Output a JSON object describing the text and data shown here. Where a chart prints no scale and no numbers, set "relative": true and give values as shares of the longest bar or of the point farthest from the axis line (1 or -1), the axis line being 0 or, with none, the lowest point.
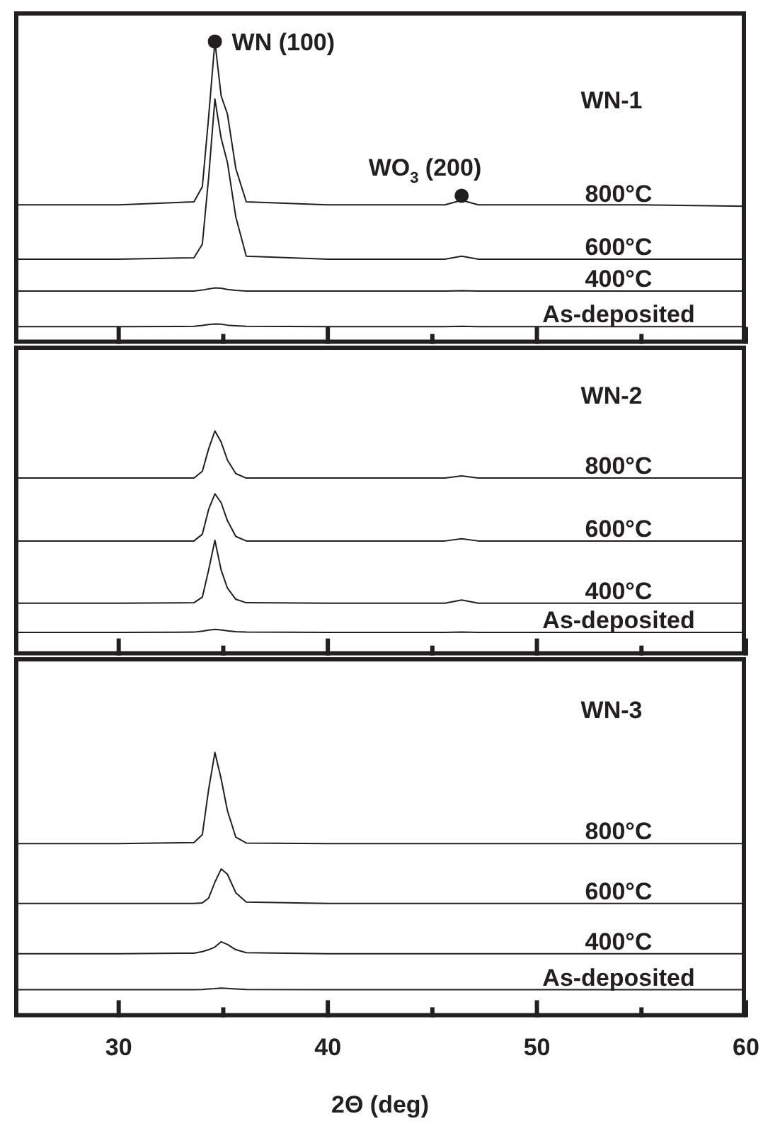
{
  "chart_data": [
    {
      "type": "line",
      "title": "WN-1",
      "relative": true,
      "xlim": [
        25,
        60
      ],
      "xticks": [
        30,
        {
          "value": 35,
          "label": null
        },
        40,
        {
          "value": 45,
          "label": null
        },
        50,
        {
          "value": 55,
          "label": null
        },
        60
      ],
      "tick_labels": false,
      "x": [
        25,
        30,
        33.6,
        34.0,
        34.3,
        34.6,
        34.9,
        35.2,
        35.6,
        36.1,
        40,
        45.6,
        46.4,
        47.2,
        55,
        60
      ],
      "series": [
        {
          "name": "800°C",
          "color": "#231f20",
          "values": [
            0.46,
            0.46,
            0.47,
            0.52,
            0.75,
            1.0,
            0.82,
            0.76,
            0.58,
            0.47,
            0.46,
            0.46,
            0.475,
            0.46,
            0.46,
            0.455
          ]
        },
        {
          "name": "600°C",
          "color": "#231f20",
          "values": [
            0.28,
            0.28,
            0.285,
            0.33,
            0.55,
            0.81,
            0.68,
            0.6,
            0.42,
            0.29,
            0.28,
            0.28,
            0.29,
            0.28,
            0.28,
            0.28
          ]
        },
        {
          "name": "400°C",
          "color": "#231f20",
          "values": [
            0.175,
            0.175,
            0.175,
            0.178,
            0.182,
            0.185,
            0.184,
            0.18,
            0.177,
            0.175,
            0.175,
            0.175,
            0.176,
            0.175,
            0.175,
            0.175
          ]
        },
        {
          "name": "As-deposited",
          "color": "#231f20",
          "values": [
            0.057,
            0.057,
            0.058,
            0.061,
            0.064,
            0.066,
            0.065,
            0.062,
            0.06,
            0.058,
            0.057,
            0.057,
            0.058,
            0.057,
            0.057,
            0.057
          ]
        }
      ],
      "annotations": [
        {
          "text": "WN (100)",
          "x": 34.6,
          "y": 1.0
        },
        {
          "text": "WO$_{3}$ (200)",
          "x": 46.4,
          "y": 0.49
        }
      ]
    },
    {
      "type": "line",
      "title": "WN-2",
      "relative": true,
      "xlim": [
        25,
        60
      ],
      "xticks": [
        30,
        {
          "value": 35,
          "label": null
        },
        40,
        {
          "value": 45,
          "label": null
        },
        50,
        {
          "value": 55,
          "label": null
        },
        60
      ],
      "tick_labels": false,
      "x": [
        25,
        30,
        33.6,
        34.0,
        34.3,
        34.6,
        34.9,
        35.2,
        35.6,
        36.1,
        40,
        45.6,
        46.4,
        47.2,
        55,
        60
      ],
      "series": [
        {
          "name": "800°C",
          "color": "#231f20",
          "values": [
            0.79,
            0.79,
            0.79,
            0.82,
            0.92,
            1.0,
            0.95,
            0.87,
            0.81,
            0.79,
            0.79,
            0.79,
            0.8,
            0.79,
            0.79,
            0.79
          ]
        },
        {
          "name": "600°C",
          "color": "#231f20",
          "values": [
            0.51,
            0.51,
            0.51,
            0.54,
            0.65,
            0.72,
            0.68,
            0.6,
            0.53,
            0.51,
            0.51,
            0.51,
            0.52,
            0.51,
            0.51,
            0.51
          ]
        },
        {
          "name": "400°C",
          "color": "#231f20",
          "values": [
            0.233,
            0.233,
            0.235,
            0.26,
            0.38,
            0.513,
            0.38,
            0.3,
            0.25,
            0.235,
            0.233,
            0.233,
            0.247,
            0.233,
            0.233,
            0.233
          ]
        },
        {
          "name": "As-deposited",
          "color": "#231f20",
          "values": [
            0.103,
            0.103,
            0.104,
            0.108,
            0.113,
            0.116,
            0.114,
            0.11,
            0.106,
            0.104,
            0.103,
            0.103,
            0.104,
            0.103,
            0.103,
            0.103
          ]
        }
      ]
    },
    {
      "type": "line",
      "title": "WN-3",
      "relative": true,
      "xlim": [
        25,
        60
      ],
      "xticks": [
        30,
        {
          "value": 35,
          "label": null
        },
        40,
        {
          "value": 45,
          "label": null
        },
        50,
        {
          "value": 55,
          "label": null
        },
        60
      ],
      "tick_labels": "x",
      "xlabel": "2Θ (deg)",
      "x": [
        25,
        30,
        33.6,
        34.0,
        34.3,
        34.6,
        34.9,
        35.2,
        35.6,
        36.1,
        40,
        45.6,
        46.4,
        47.2,
        55,
        60
      ],
      "series": [
        {
          "name": "800°C",
          "color": "#231f20",
          "values": [
            0.656,
            0.656,
            0.66,
            0.69,
            0.86,
            1.0,
            0.9,
            0.78,
            0.68,
            0.658,
            0.656,
            0.656,
            0.656,
            0.656,
            0.656,
            0.656
          ]
        },
        {
          "name": "600°C",
          "color": "#231f20",
          "values": [
            0.43,
            0.43,
            0.43,
            0.432,
            0.45,
            0.51,
            0.56,
            0.54,
            0.47,
            0.435,
            0.43,
            0.43,
            0.43,
            0.43,
            0.43,
            0.43
          ]
        },
        {
          "name": "400°C",
          "color": "#231f20",
          "values": [
            0.24,
            0.24,
            0.242,
            0.248,
            0.255,
            0.265,
            0.285,
            0.275,
            0.255,
            0.244,
            0.24,
            0.24,
            0.24,
            0.24,
            0.24,
            0.24
          ]
        },
        {
          "name": "As-deposited",
          "color": "#231f20",
          "values": [
            0.104,
            0.104,
            0.104,
            0.105,
            0.107,
            0.108,
            0.11,
            0.109,
            0.107,
            0.105,
            0.104,
            0.104,
            0.104,
            0.104,
            0.104,
            0.104
          ]
        }
      ]
    }
  ]
}
